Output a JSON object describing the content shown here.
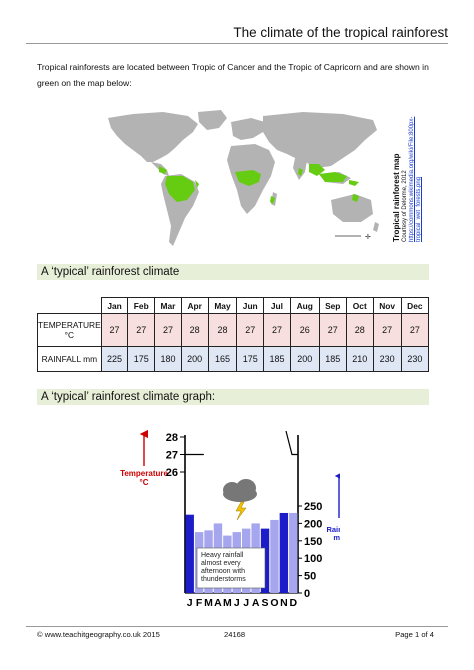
{
  "page_title": "The climate of the tropical rainforest",
  "intro_text": "Tropical rainforests are located between Tropic of Cancer and the Tropic of Capricorn and are shown in green on the map below:",
  "map": {
    "caption_title": "Tropical rainforest map",
    "caption_credit": "Courtesy of Delorme, 2012",
    "caption_url": "https://commons.wikimedia.org/wiki/File:800px-tropical_wet_forests.png",
    "land_color": "#b3b3b3",
    "forest_color": "#66cc11"
  },
  "section1_heading": "A ‘typical’ rainforest climate",
  "table": {
    "months": [
      "Jan",
      "Feb",
      "Mar",
      "Apr",
      "May",
      "Jun",
      "Jul",
      "Aug",
      "Sep",
      "Oct",
      "Nov",
      "Dec"
    ],
    "temp_label_line1": "TEMPERATURE",
    "temp_label_line2": "°C",
    "temperatures": [
      "27",
      "27",
      "27",
      "28",
      "28",
      "27",
      "27",
      "26",
      "27",
      "28",
      "27",
      "27"
    ],
    "rain_label": "RAINFALL mm",
    "rainfall": [
      "225",
      "175",
      "180",
      "200",
      "165",
      "175",
      "185",
      "200",
      "185",
      "210",
      "230",
      "230"
    ]
  },
  "section2_heading": "A ‘typical’ rainforest climate graph:",
  "chart_data": {
    "type": "bar",
    "categories": [
      "J",
      "F",
      "M",
      "A",
      "M",
      "J",
      "J",
      "A",
      "S",
      "O",
      "N",
      "D"
    ],
    "series": [
      {
        "name": "Rainfall mm",
        "values": [
          225,
          175,
          180,
          200,
          165,
          175,
          185,
          200,
          185,
          210,
          230,
          230
        ]
      },
      {
        "name": "Temperature °C",
        "values": [
          27,
          27,
          27,
          28,
          28,
          27,
          27,
          26,
          27,
          28,
          27,
          27
        ]
      }
    ],
    "temp_ticks": [
      "28",
      "27",
      "26"
    ],
    "rain_ticks": [
      "250",
      "200",
      "150",
      "100",
      "50",
      "0"
    ],
    "ylabel_left_line1": "Temperature",
    "ylabel_left_line2": "°C",
    "ylabel_right_line1": "Rainfall",
    "ylabel_right_line2": "mm",
    "annotation": [
      "Heavy rainfall",
      "almost every",
      "afternoon with",
      "thunderstorms"
    ],
    "ylim_rain": [
      0,
      250
    ],
    "ylim_temp": [
      26,
      28
    ],
    "temp_color": "#cc0000",
    "rain_color": "#1c1cc8",
    "rain_bar_dark": "#1c1cc8",
    "rain_bar_light": "#a6a6ee"
  },
  "footer": {
    "left": "© www.teachitgeography.co.uk 2015",
    "center": "24168",
    "right": "Page 1 of 4"
  }
}
